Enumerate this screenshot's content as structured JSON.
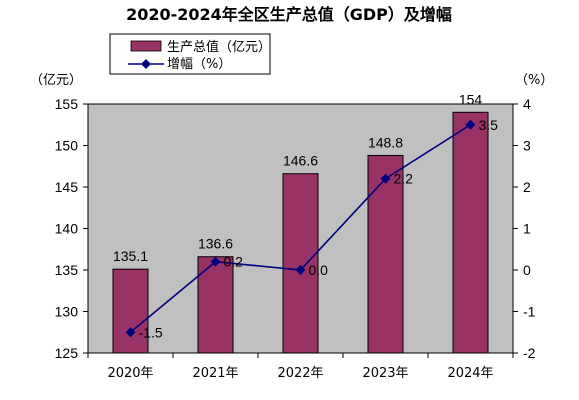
{
  "chart_data": {
    "type": "bar+line",
    "title": "2020-2024年全区生产总值（GDP）及增幅",
    "categories": [
      "2020年",
      "2021年",
      "2022年",
      "2023年",
      "2024年"
    ],
    "series": [
      {
        "name": "生产总值（亿元）",
        "type": "bar",
        "axis": "left",
        "values": [
          135.1,
          136.6,
          146.6,
          148.8,
          154
        ],
        "labels": [
          "135.1",
          "136.6",
          "146.6",
          "148.8",
          "154"
        ],
        "color": "#993366"
      },
      {
        "name": "增幅（%）",
        "type": "line",
        "axis": "right",
        "values": [
          -1.5,
          0.2,
          0.0,
          2.2,
          3.5
        ],
        "labels": [
          "-1.5",
          "0.2",
          "0.0",
          "2.2",
          "3.5"
        ],
        "color": "#000080"
      }
    ],
    "y_left": {
      "label": "（亿元）",
      "range": [
        125,
        155
      ],
      "ticks": [
        "125",
        "130",
        "135",
        "140",
        "145",
        "150",
        "155"
      ]
    },
    "y_right": {
      "label": "（%）",
      "range": [
        -2,
        4
      ],
      "ticks": [
        "-2",
        "-1",
        "0",
        "1",
        "2",
        "3",
        "4"
      ]
    },
    "plot_background": "#c0c0c0",
    "grid": false,
    "legend_position": "top-left"
  }
}
